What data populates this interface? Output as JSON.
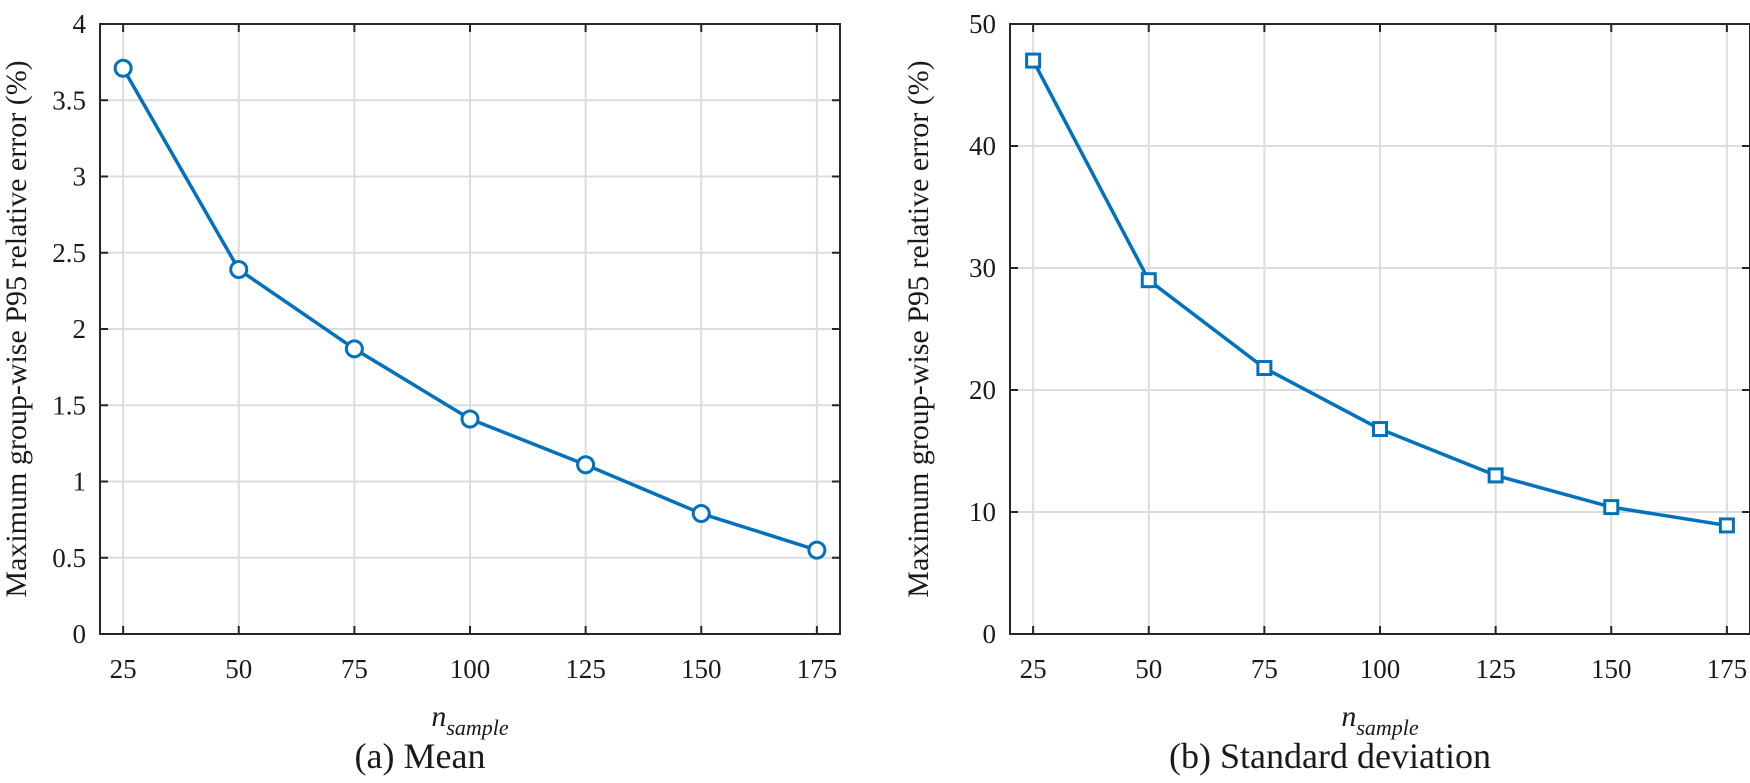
{
  "figure": {
    "captions": [
      "(a)  Mean",
      "(b) Standard deviation"
    ]
  },
  "style": {
    "line_color": "#0072BD",
    "grid_color": "#dcdcdc",
    "axis_color": "#262626"
  },
  "chart_data": [
    {
      "type": "line",
      "caption": "(a)  Mean",
      "marker": "circle",
      "xlabel_main": "n",
      "xlabel_sub": "sample",
      "ylabel": "Maximum group-wise P95 relative error (%)",
      "xlim": [
        20,
        180
      ],
      "ylim": [
        0,
        4
      ],
      "xticks": [
        25,
        50,
        75,
        100,
        125,
        150,
        175
      ],
      "yticks": [
        0,
        0.5,
        1,
        1.5,
        2,
        2.5,
        3,
        3.5,
        4
      ],
      "ytick_labels": [
        "0",
        "0.5",
        "1",
        "1.5",
        "2",
        "2.5",
        "3",
        "3.5",
        "4"
      ],
      "grid": true,
      "x": [
        25,
        50,
        75,
        100,
        125,
        150,
        175
      ],
      "y": [
        3.71,
        2.39,
        1.87,
        1.41,
        1.11,
        0.79,
        0.55
      ]
    },
    {
      "type": "line",
      "caption": "(b) Standard deviation",
      "marker": "square",
      "xlabel_main": "n",
      "xlabel_sub": "sample",
      "ylabel": "Maximum group-wise P95 relative error (%)",
      "xlim": [
        20,
        180
      ],
      "ylim": [
        0,
        50
      ],
      "xticks": [
        25,
        50,
        75,
        100,
        125,
        150,
        175
      ],
      "yticks": [
        0,
        10,
        20,
        30,
        40,
        50
      ],
      "ytick_labels": [
        "0",
        "10",
        "20",
        "30",
        "40",
        "50"
      ],
      "grid": true,
      "x": [
        25,
        50,
        75,
        100,
        125,
        150,
        175
      ],
      "y": [
        47.0,
        29.0,
        21.8,
        16.8,
        13.0,
        10.4,
        8.9
      ]
    }
  ]
}
